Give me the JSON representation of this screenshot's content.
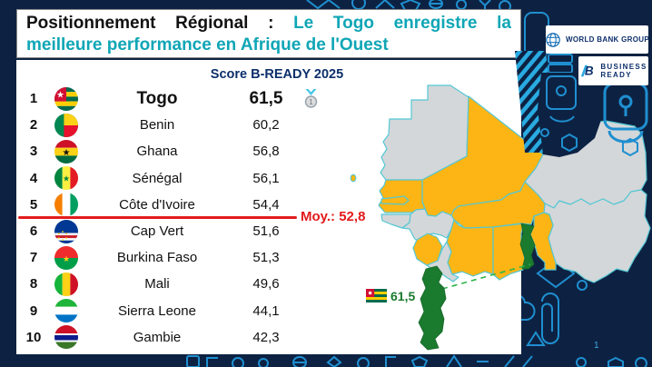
{
  "slide": {
    "title_black": "Positionnement Régional :",
    "title_teal_line1": "Le Togo enregistre la",
    "title_teal_line2": "meilleure performance en Afrique de l'Ouest",
    "page_number": "1"
  },
  "logos": {
    "world_bank": "WORLD BANK GROUP",
    "business_line1": "BUSINESS",
    "business_line2": "READY"
  },
  "table": {
    "header": "Score B-READY 2025",
    "average_label": "Moy.: 52,8",
    "rows": [
      {
        "rank": "1",
        "flag": "togo",
        "country": "Togo",
        "score": "61,5",
        "top": true,
        "medal": "1"
      },
      {
        "rank": "2",
        "flag": "benin",
        "country": "Benin",
        "score": "60,2"
      },
      {
        "rank": "3",
        "flag": "ghana",
        "country": "Ghana",
        "score": "56,8"
      },
      {
        "rank": "4",
        "flag": "senegal",
        "country": "Sénégal",
        "score": "56,1"
      },
      {
        "rank": "5",
        "flag": "cotedivoire",
        "country": "Côte d'Ivoire",
        "score": "54,4"
      },
      {
        "rank": "6",
        "flag": "capvert",
        "country": "Cap Vert",
        "score": "51,6"
      },
      {
        "rank": "7",
        "flag": "burkina",
        "country": "Burkina Faso",
        "score": "51,3"
      },
      {
        "rank": "8",
        "flag": "mali",
        "country": "Mali",
        "score": "49,6"
      },
      {
        "rank": "9",
        "flag": "sierraleone",
        "country": "Sierra Leone",
        "score": "44,1"
      },
      {
        "rank": "10",
        "flag": "gambie",
        "country": "Gambie",
        "score": "42,3"
      }
    ]
  },
  "map": {
    "togo_score_label": "61,5"
  },
  "chart_data": {
    "type": "table",
    "title": "Score B-READY 2025",
    "categories": [
      "Togo",
      "Benin",
      "Ghana",
      "Sénégal",
      "Côte d'Ivoire",
      "Cap Vert",
      "Burkina Faso",
      "Mali",
      "Sierra Leone",
      "Gambie"
    ],
    "values": [
      61.5,
      60.2,
      56.8,
      56.1,
      54.4,
      51.6,
      51.3,
      49.6,
      44.1,
      42.3
    ],
    "average": 52.8,
    "average_label": "Moy.: 52,8",
    "notes": "Togo highlighted green on West Africa map; ranked countries yellow; unranked gray"
  },
  "colors": {
    "background": "#0d2243",
    "pattern_blue": "#1f8fd0",
    "accent_teal": "#0fa6b6",
    "header_navy": "#0c2f6b",
    "highlight_red": "#e31b1c",
    "map_member_yellow": "#fcb514",
    "map_non_ranked_gray": "#d4d7d9",
    "map_togo_green": "#1a7a2e",
    "map_border": "#54c7d4"
  }
}
